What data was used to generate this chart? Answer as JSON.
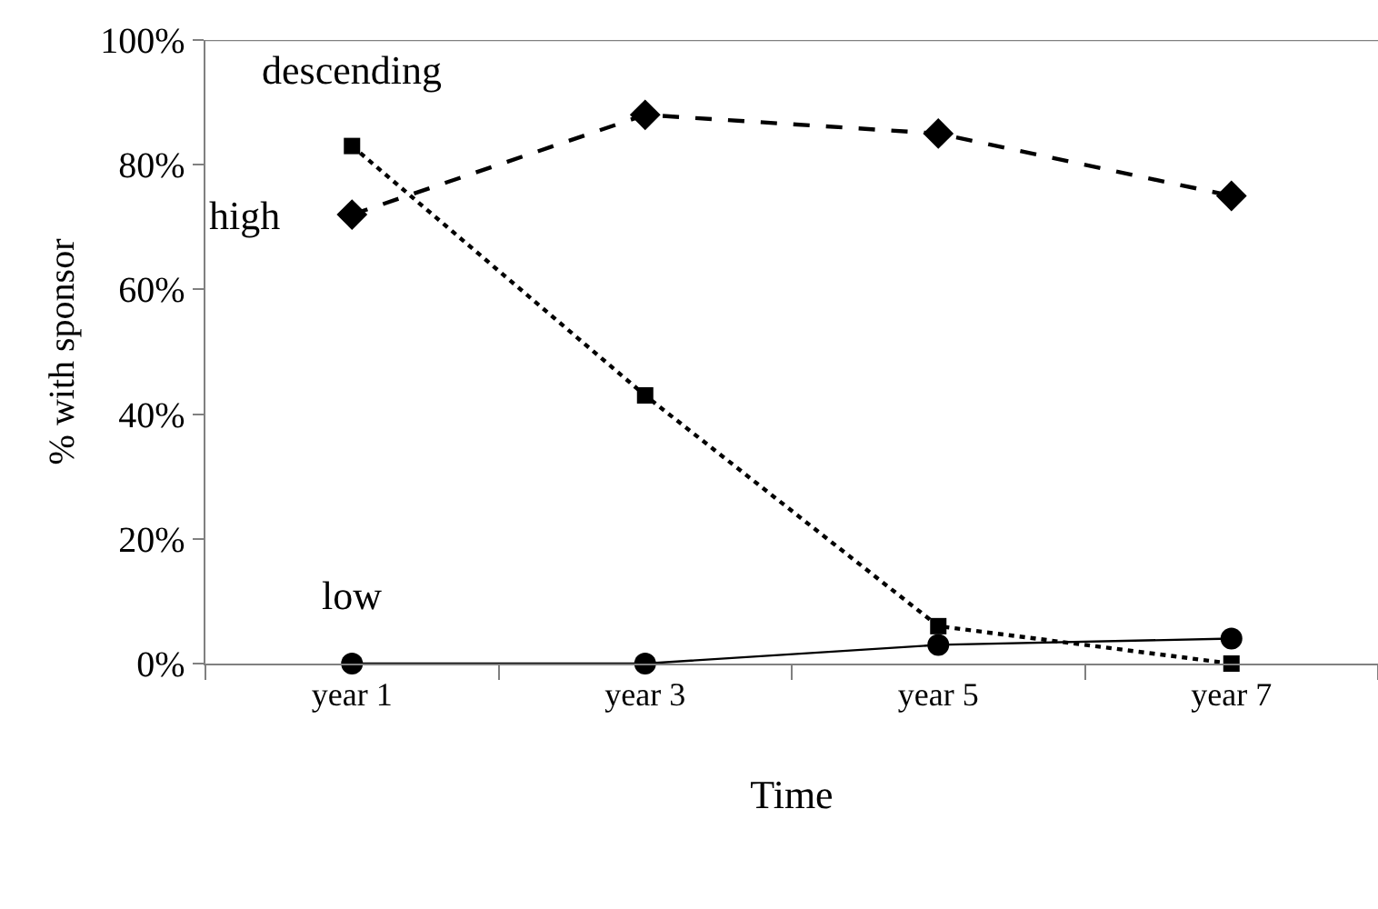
{
  "chart_data": {
    "type": "line",
    "xlabel": "Time",
    "ylabel": "% with sponsor",
    "categories": [
      "year 1",
      "year 3",
      "year 5",
      "year 7"
    ],
    "series": [
      {
        "name": "high",
        "color": "#000000",
        "values": [
          72,
          88,
          85,
          75
        ],
        "marker": "diamond",
        "line_style": "dashed"
      },
      {
        "name": "descending",
        "color": "#000000",
        "values": [
          83,
          43,
          6,
          0
        ],
        "marker": "square",
        "line_style": "dotted"
      },
      {
        "name": "low",
        "color": "#000000",
        "values": [
          0,
          0,
          3,
          4
        ],
        "marker": "circle",
        "line_style": "solid"
      }
    ],
    "ylim": [
      0,
      100
    ],
    "yticks": [
      {
        "value": 0,
        "label": "0%"
      },
      {
        "value": 20,
        "label": "20%"
      },
      {
        "value": 40,
        "label": "40%"
      },
      {
        "value": 60,
        "label": "60%"
      },
      {
        "value": 80,
        "label": "80%"
      },
      {
        "value": 100,
        "label": "100%"
      }
    ],
    "grid": false,
    "legend": false
  }
}
